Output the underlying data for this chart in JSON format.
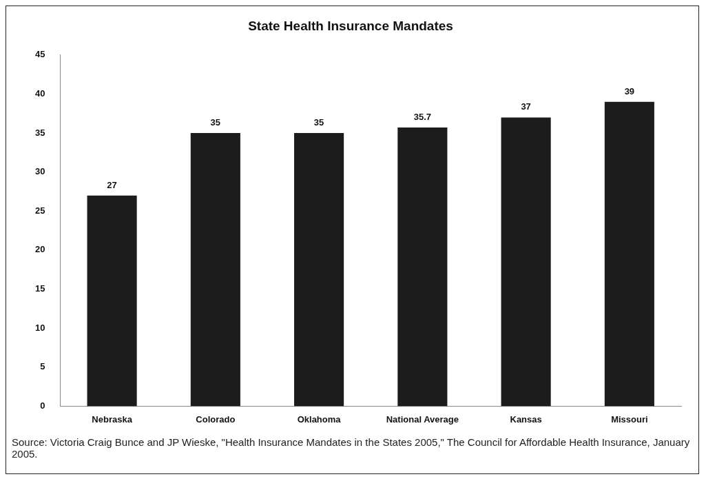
{
  "chart_data": {
    "type": "bar",
    "title": "State Health Insurance Mandates",
    "categories": [
      "Nebraska",
      "Colorado",
      "Oklahoma",
      "National Average",
      "Kansas",
      "Missouri"
    ],
    "values": [
      27,
      35,
      35,
      35.7,
      37,
      39
    ],
    "color": "#1c1c1c",
    "ylim": [
      0,
      45
    ],
    "yticks": [
      0,
      5,
      10,
      15,
      20,
      25,
      30,
      35,
      40,
      45
    ],
    "grid": false,
    "legend": false,
    "data_labels": true,
    "annotations": [
      "Source: Victoria Craig Bunce and JP Wieske, \"Health Insurance Mandates in the States 2005,\" The Council for Affordable Health Insurance, January 2005."
    ]
  }
}
